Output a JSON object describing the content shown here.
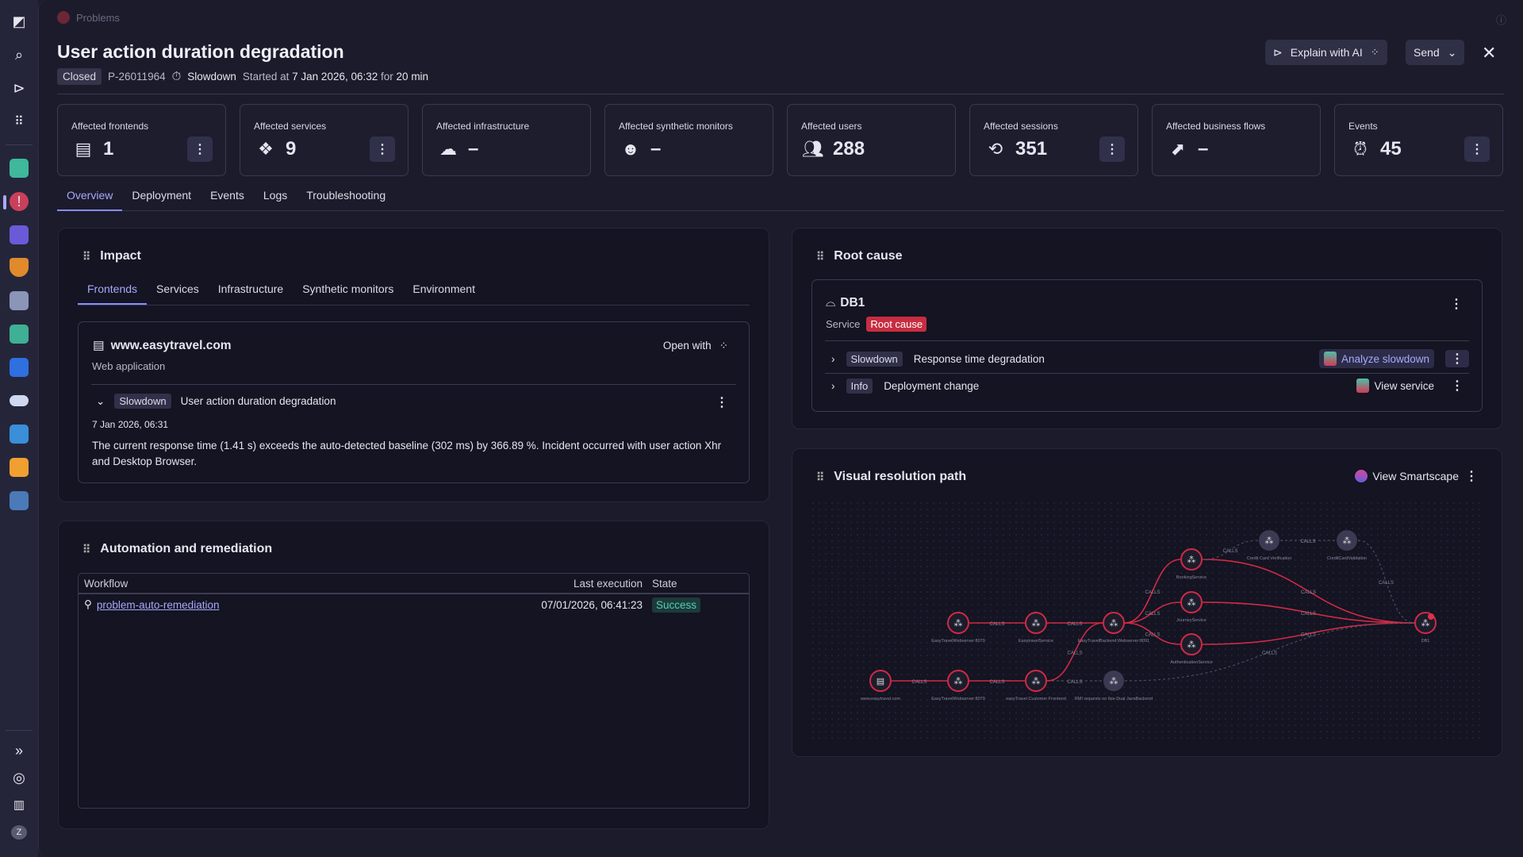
{
  "breadcrumb": {
    "app": "Problems"
  },
  "header": {
    "title": "User action duration degradation",
    "status": "Closed",
    "problem_id": "P-26011964",
    "category": "Slowdown",
    "started_prefix": "Started at",
    "started_at": "7 Jan 2026, 06:32",
    "duration_prefix": "for",
    "duration": "20 min",
    "explain_ai": "Explain with AI",
    "send": "Send"
  },
  "kpis": [
    {
      "label": "Affected frontends",
      "value": "1",
      "icon": "browser-window-icon",
      "menu": true
    },
    {
      "label": "Affected services",
      "value": "9",
      "icon": "services-cubes-icon",
      "menu": true
    },
    {
      "label": "Affected infrastructure",
      "value": "–",
      "icon": "cloud-infrastructure-icon",
      "menu": false
    },
    {
      "label": "Affected synthetic monitors",
      "value": "–",
      "icon": "robot-icon",
      "menu": false
    },
    {
      "label": "Affected users",
      "value": "288",
      "icon": "users-icon",
      "menu": false
    },
    {
      "label": "Affected sessions",
      "value": "351",
      "icon": "session-replay-icon",
      "menu": true
    },
    {
      "label": "Affected business flows",
      "value": "–",
      "icon": "business-flow-icon",
      "menu": false
    },
    {
      "label": "Events",
      "value": "45",
      "icon": "alarm-icon",
      "menu": true
    }
  ],
  "tabs": [
    "Overview",
    "Deployment",
    "Events",
    "Logs",
    "Troubleshooting"
  ],
  "impact": {
    "title": "Impact",
    "tabs": [
      "Frontends",
      "Services",
      "Infrastructure",
      "Synthetic monitors",
      "Environment"
    ],
    "entity": "www.easytravel.com",
    "entity_type": "Web application",
    "open_with": "Open with",
    "event": {
      "tag": "Slowdown",
      "title": "User action duration degradation",
      "time": "7 Jan 2026, 06:31",
      "description": "The current response time (1.41 s) exceeds the auto-detected baseline (302 ms) by 366.89 %. Incident occurred with user action Xhr and Desktop Browser."
    }
  },
  "automation": {
    "title": "Automation and remediation",
    "columns": [
      "Workflow",
      "Last execution",
      "State"
    ],
    "rows": [
      {
        "workflow": "problem-auto-remediation",
        "last_execution": "07/01/2026, 06:41:23",
        "state": "Success"
      }
    ]
  },
  "root_cause": {
    "title": "Root cause",
    "entity": "DB1",
    "entity_type": "Service",
    "badge": "Root cause",
    "rows": [
      {
        "tag": "Slowdown",
        "text": "Response time degradation",
        "action": "Analyze slowdown"
      },
      {
        "tag": "Info",
        "text": "Deployment change",
        "action": "View service"
      }
    ]
  },
  "resolution": {
    "title": "Visual resolution path",
    "action": "View Smartscape",
    "edge_label": "CALLS",
    "nodes": [
      "www.easytravel.com",
      "EasyTravelWebserver:8079",
      "easyTravel Customer Frontend",
      "RMI requests on Ibis-Dual JavaBackend",
      "EasyTravelWebserver:8079",
      "EasytravelService",
      "EasyTravelBackend:Webserver:8091",
      "BookingService",
      "JourneyService",
      "AuthenticationService",
      "Credit Card Verification",
      "CreditCardValidation",
      "DB1"
    ]
  },
  "user": {
    "initial": "Z"
  }
}
